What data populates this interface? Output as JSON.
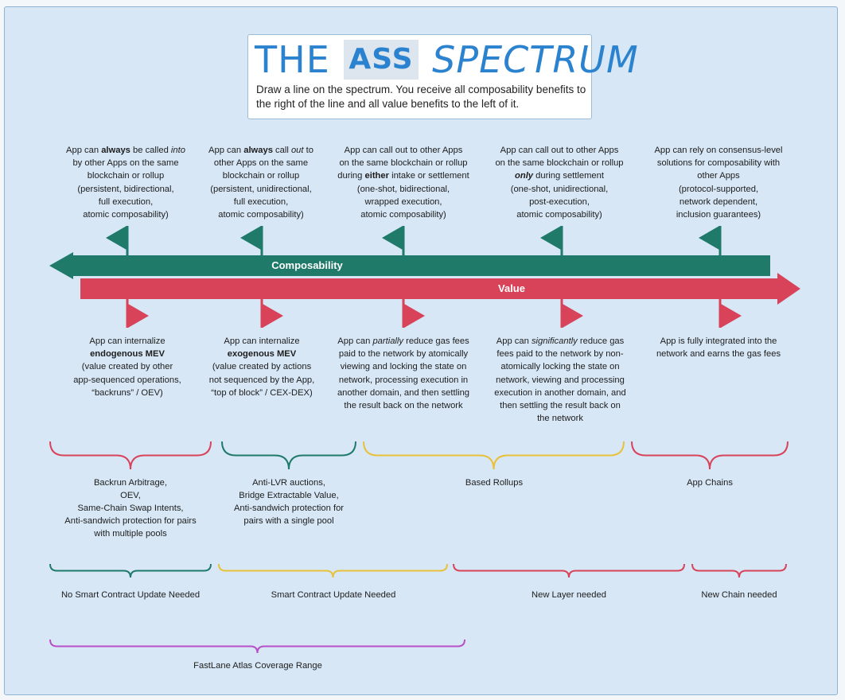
{
  "header": {
    "title_part1": "THE",
    "title_part2": "ASS",
    "title_part3": "SPECTRUM",
    "subtitle": "Draw a line on the spectrum. You receive all composability benefits to the right of the line and all value benefits to the left of it."
  },
  "composability": {
    "label": "Composability",
    "items": [
      [
        "App can ",
        {
          "b": "always"
        },
        " be called ",
        {
          "i": "into"
        },
        "\nby other Apps on the same\nblockchain or rollup\n(persistent, bidirectional,\nfull execution,\natomic composability)"
      ],
      [
        "App can ",
        {
          "b": "always"
        },
        " call ",
        {
          "i": "out"
        },
        " to\nother Apps on the same\nblockchain or rollup\n(persistent, unidirectional,\nfull execution,\natomic composability)"
      ],
      [
        "App can call out to other Apps\non the same blockchain or rollup\nduring ",
        {
          "b": "either"
        },
        " intake or settlement\n(one-shot, bidirectional,\nwrapped execution,\natomic composability)"
      ],
      [
        "App can call out to other Apps\non the same blockchain or rollup\n",
        {
          "bi": "only"
        },
        " during settlement\n(one-shot, unidirectional,\npost-execution,\natomic  composability)"
      ],
      [
        "App can rely on consensus-level\nsolutions for composability with\nother Apps\n(protocol-supported,\nnetwork dependent,\ninclusion guarantees)"
      ]
    ],
    "color": "#1f7a6a"
  },
  "value": {
    "label": "Value",
    "items": [
      [
        "App can internalize\n",
        {
          "b": "endogenous MEV"
        },
        "\n(value created by other\napp-sequenced operations,\n“backruns” / OEV)"
      ],
      [
        "App can internalize\n",
        {
          "b": "exogenous MEV"
        },
        "\n(value created by actions\nnot sequenced by the App,\n“top of block” / CEX-DEX)"
      ],
      [
        "App can ",
        {
          "i": "partially"
        },
        " reduce gas fees\npaid to the network by atomically\nviewing and locking the state on\nnetwork, processing execution in\nanother domain, and then settling\nthe result back on the network"
      ],
      [
        "App can ",
        {
          "i": "significantly"
        },
        " reduce gas\nfees paid to the network by non-\natomically locking the state on\nnetwork, viewing and processing\nexecution in another domain, and\nthen settling the result back on\nthe network"
      ],
      [
        "App is fully integrated into the\nnetwork and earns the gas fees"
      ]
    ],
    "color": "#d8435a"
  },
  "use_cases": [
    {
      "text": "Backrun Arbitrage,\nOEV,\nSame-Chain Swap Intents,\nAnti-sandwich protection for pairs\nwith multiple pools",
      "color": "#d8435a"
    },
    {
      "text": "Anti-LVR auctions,\nBridge Extractable Value,\nAnti-sandwich protection for\npairs with a single pool",
      "color": "#1f7a6a"
    },
    {
      "text": "Based Rollups",
      "color": "#e8c13a"
    },
    {
      "text": "App Chains",
      "color": "#d8435a"
    }
  ],
  "requirements": [
    {
      "text": "No Smart Contract Update Needed",
      "color": "#1f7a6a"
    },
    {
      "text": "Smart Contract Update Needed",
      "color": "#e8c13a"
    },
    {
      "text": "New Layer needed",
      "color": "#d8435a"
    },
    {
      "text": "New Chain needed",
      "color": "#d8435a"
    }
  ],
  "coverage": {
    "text": "FastLane Atlas Coverage Range",
    "color": "#b64fc8"
  }
}
